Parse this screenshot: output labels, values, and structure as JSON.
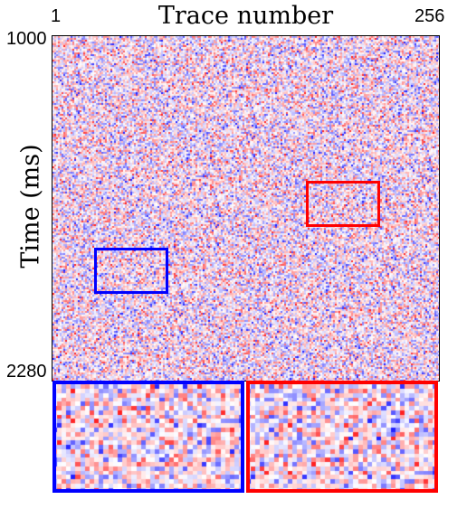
{
  "chart_data": {
    "type": "heatmap",
    "title": "",
    "xlabel": "Trace number",
    "ylabel": "Time (ms)",
    "x_tick_labels": [
      "1",
      "256"
    ],
    "y_tick_labels": [
      "1000",
      "2280"
    ],
    "x_range": [
      1,
      256
    ],
    "y_range_ms": [
      1000,
      2280
    ],
    "y_inverted": true,
    "colormap": "blue-white-red (seismic)",
    "color_negative": "#2020ff",
    "color_zero": "#ffffff",
    "color_positive": "#ff2020",
    "legend": "none",
    "grid": false,
    "highlight_boxes": [
      {
        "color": "#0000ff",
        "trace_range": [
          29,
          77
        ],
        "time_range_ms": [
          1733,
          1880
        ]
      },
      {
        "color": "#ff0000",
        "trace_range": [
          169,
          217
        ],
        "time_range_ms": [
          1483,
          1630
        ]
      }
    ],
    "zoom_panels": [
      {
        "color": "#0000ff",
        "source": "blue box",
        "position": "bottom-left"
      },
      {
        "color": "#ff0000",
        "source": "red box",
        "position": "bottom-right"
      }
    ]
  }
}
